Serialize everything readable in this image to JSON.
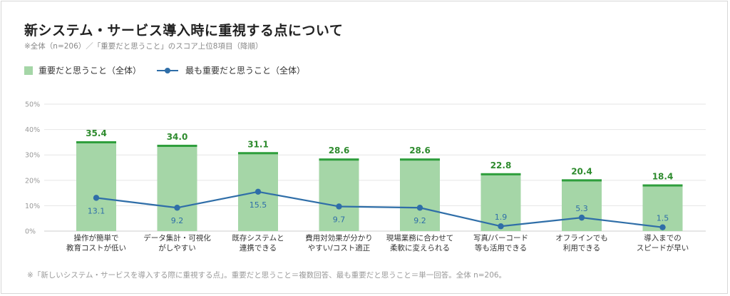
{
  "title": "新システム・サービス導入時に重視する点について",
  "subtitle": "※全体（n=206）／「重要だと思うこと」のスコア上位8項目（降順）",
  "footnote": "※「新しいシステム・サービスを導入する際に重視する点」。重要だと思うこと＝複数回答、最も重要だと思うこと＝単一回答。全体 n=206。",
  "colors": {
    "bar_fill": "#a5d6a7",
    "bar_top": "#2e9e3c",
    "bar_label": "#2e8b2e",
    "line": "#2f6ea8",
    "line_label": "#2f6ea8",
    "grid": "#e6e6e6",
    "axis_text": "#999999"
  },
  "chart_data": {
    "type": "bar",
    "categories": [
      [
        "操作が簡単で",
        "教育コストが低い"
      ],
      [
        "データ集計・可視化",
        "がしやすい"
      ],
      [
        "既存システムと",
        "連携できる"
      ],
      [
        "費用対効果が分かり",
        "やすい/コスト適正"
      ],
      [
        "現場業務に合わせて",
        "柔軟に変えられる"
      ],
      [
        "写真/バーコード",
        "等も活用できる"
      ],
      [
        "オフラインでも",
        "利用できる"
      ],
      [
        "導入までの",
        "スピードが早い"
      ]
    ],
    "series": [
      {
        "name": "重要だと思うこと（全体）",
        "type": "bar",
        "values": [
          35.4,
          34.0,
          31.1,
          28.6,
          28.6,
          22.8,
          20.4,
          18.4
        ],
        "labels": [
          "35.4",
          "34.0",
          "31.1",
          "28.6",
          "28.6",
          "22.8",
          "20.4",
          "18.4"
        ]
      },
      {
        "name": "最も重要だと思うこと（全体）",
        "type": "line",
        "values": [
          13.1,
          9.2,
          15.5,
          9.7,
          9.2,
          1.9,
          5.3,
          1.5
        ],
        "labels": [
          "13.1",
          "9.2",
          "15.5",
          "9.7",
          "9.2",
          "1.9",
          "5.3",
          "1.5"
        ]
      }
    ],
    "ylim": [
      0,
      50
    ],
    "yticks": [
      0,
      10,
      20,
      30,
      40,
      50
    ],
    "ytick_labels": [
      "0%",
      "10%",
      "20%",
      "30%",
      "40%",
      "50%"
    ],
    "grid": true,
    "legend": "top-left"
  }
}
